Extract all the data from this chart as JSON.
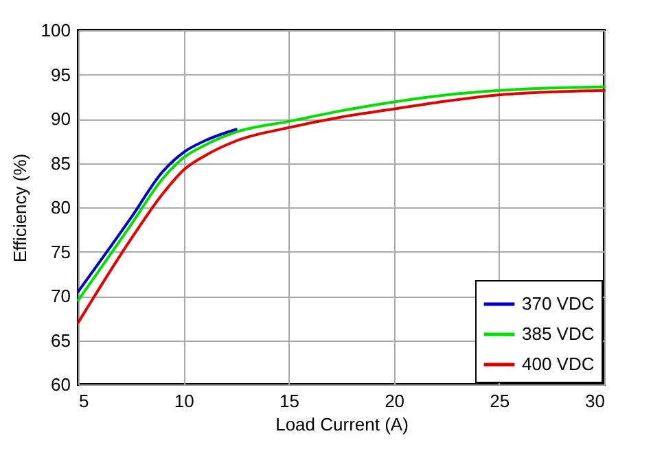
{
  "chart_data": {
    "type": "line",
    "xlabel": "Load Current (A)",
    "ylabel": "Efficiency (%)",
    "x": [
      5,
      7.5,
      9,
      10,
      11,
      12.5,
      15,
      17.5,
      20,
      22.5,
      25,
      30
    ],
    "series": [
      {
        "name": "370 VDC",
        "color": "#0000c0",
        "values": [
          70.5,
          78.8,
          84,
          86.2,
          87.5,
          88.8,
          null,
          null,
          null,
          null,
          null,
          null
        ]
      },
      {
        "name": "385 VDC",
        "color": "#00e000",
        "values": [
          69.5,
          78,
          83.2,
          85.6,
          87,
          88.5,
          89.7,
          90.9,
          91.9,
          92.7,
          93.2,
          93.6
        ]
      },
      {
        "name": "400 VDC",
        "color": "#e00000",
        "values": [
          67,
          76.4,
          81.5,
          84.2,
          85.8,
          87.5,
          89,
          90.2,
          91.1,
          92,
          92.7,
          93.2
        ]
      }
    ],
    "xlim": [
      5,
      30
    ],
    "xticks": [
      5,
      10,
      15,
      20,
      25,
      30
    ],
    "ylim": [
      60,
      100
    ],
    "yticks": [
      60,
      65,
      70,
      75,
      80,
      85,
      90,
      95,
      100
    ],
    "grid": true,
    "legend": "bottom right",
    "line_style": "solid"
  }
}
